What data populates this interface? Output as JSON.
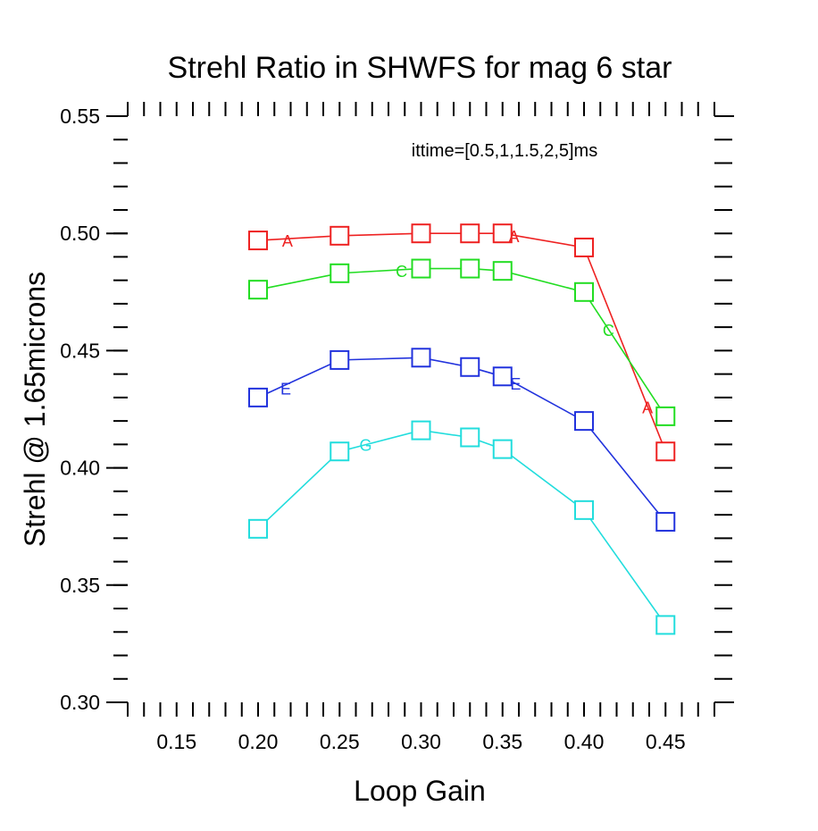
{
  "chart_data": {
    "type": "line",
    "title": "Strehl Ratio in SHWFS for mag 6 star",
    "xlabel": "Loop Gain",
    "ylabel": "Strehl @ 1.65microns",
    "annotation": "ittime=[0.5,1,1.5,2,5]ms",
    "xlim": [
      0.12,
      0.48
    ],
    "ylim": [
      0.3,
      0.55
    ],
    "x_ticks": [
      "0.15",
      "0.20",
      "0.25",
      "0.30",
      "0.35",
      "0.40",
      "0.45"
    ],
    "x_tick_values": [
      0.15,
      0.2,
      0.25,
      0.3,
      0.35,
      0.4,
      0.45
    ],
    "y_ticks": [
      "0.30",
      "0.35",
      "0.40",
      "0.45",
      "0.50",
      "0.55"
    ],
    "y_tick_values": [
      0.3,
      0.35,
      0.4,
      0.45,
      0.5,
      0.55
    ],
    "grid": false,
    "x": [
      0.2,
      0.25,
      0.3,
      0.33,
      0.35,
      0.4,
      0.45
    ],
    "series": [
      {
        "symbol": "A",
        "color": "#ee2222",
        "values": [
          0.497,
          0.499,
          0.5,
          0.5,
          0.5,
          0.494,
          0.407
        ],
        "symbol_marks": [
          [
            0.218,
            0.497
          ],
          [
            0.357,
            0.499
          ],
          [
            0.439,
            0.426
          ]
        ]
      },
      {
        "symbol": "C",
        "color": "#22dd22",
        "values": [
          0.476,
          0.483,
          0.485,
          0.485,
          0.484,
          0.475,
          0.422
        ],
        "symbol_marks": [
          [
            0.288,
            0.484
          ],
          [
            0.415,
            0.459
          ]
        ]
      },
      {
        "symbol": "E",
        "color": "#2233dd",
        "values": [
          0.43,
          0.446,
          0.447,
          0.443,
          0.439,
          0.42,
          0.377
        ],
        "symbol_marks": [
          [
            0.217,
            0.434
          ],
          [
            0.358,
            0.436
          ]
        ]
      },
      {
        "symbol": "G",
        "color": "#22dddd",
        "values": [
          0.374,
          0.407,
          0.416,
          0.413,
          0.408,
          0.382,
          0.333
        ],
        "symbol_marks": [
          [
            0.266,
            0.41
          ]
        ]
      }
    ]
  }
}
